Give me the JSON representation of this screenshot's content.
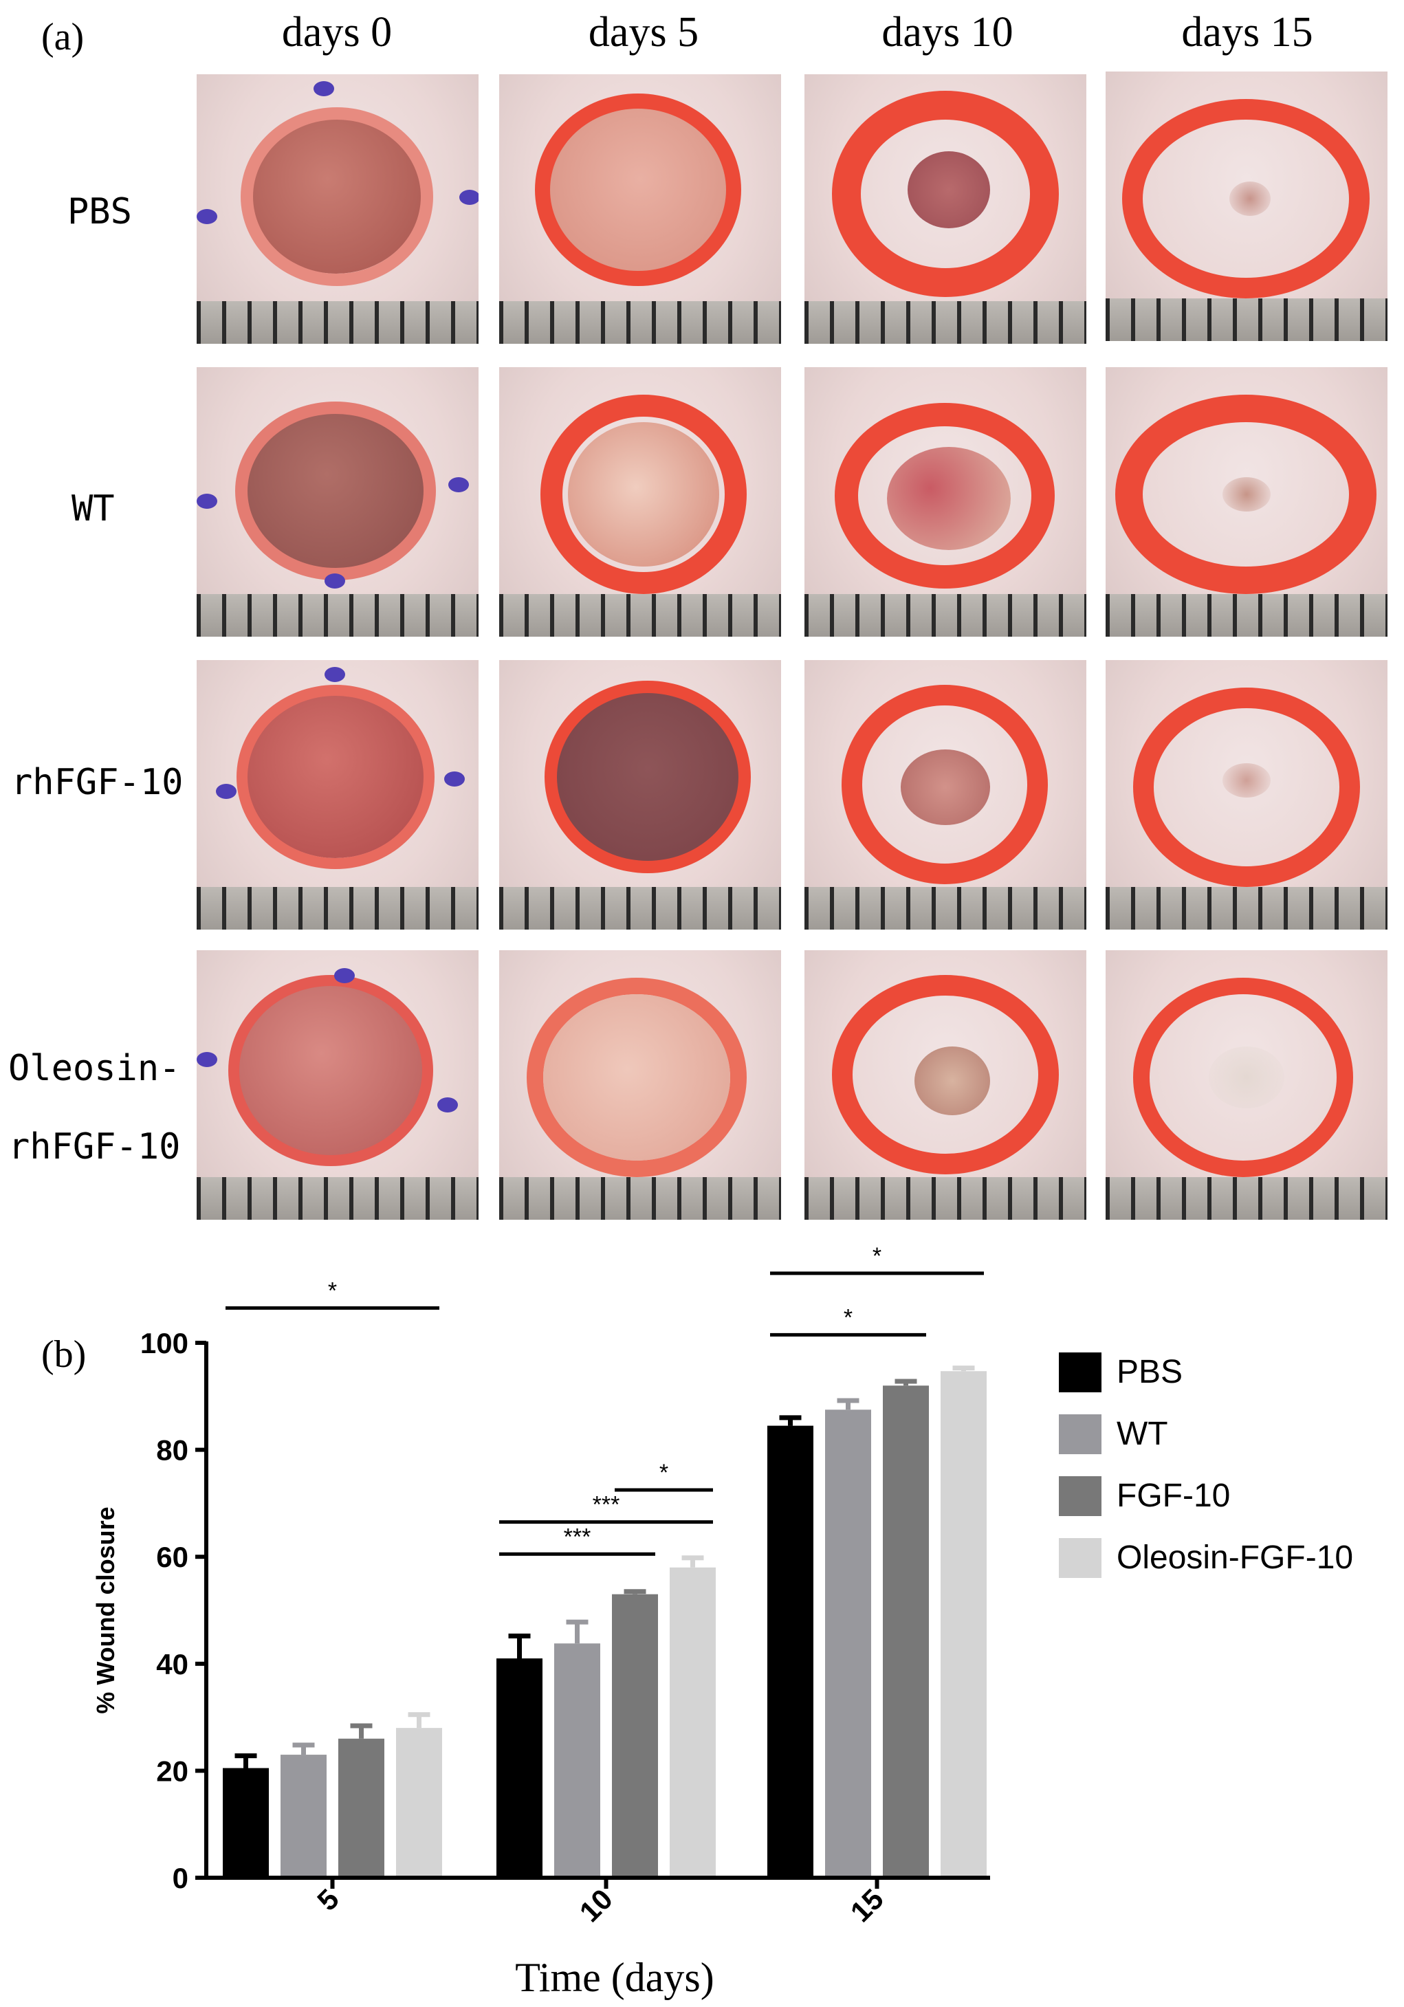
{
  "panel_a": {
    "label": "(a)",
    "columns": [
      "days 0",
      "days 5",
      "days 10",
      "days 15"
    ],
    "rows": [
      {
        "lines": [
          "PBS"
        ]
      },
      {
        "lines": [
          "WT"
        ]
      },
      {
        "lines": [
          "rhFGF-10"
        ]
      },
      {
        "lines": [
          "Oleosin-",
          "rhFGF-10"
        ]
      }
    ]
  },
  "panel_b": {
    "label": "(b)"
  },
  "chart_data": {
    "type": "bar",
    "title": "",
    "xlabel": "Time (days)",
    "ylabel": "% Wound closure",
    "categories": [
      "5",
      "10",
      "15"
    ],
    "ylim": [
      0,
      100
    ],
    "yticks": [
      "0",
      "20",
      "40",
      "60",
      "80",
      "100"
    ],
    "grid": false,
    "legend_position": "right",
    "series": [
      {
        "name": "PBS",
        "color": "#000000",
        "values": [
          20.5,
          41.0,
          84.5
        ],
        "errors": [
          2.3,
          4.2,
          1.5
        ]
      },
      {
        "name": "WT",
        "color": "#98989d",
        "values": [
          23.0,
          43.8,
          87.5
        ],
        "errors": [
          1.8,
          4.0,
          1.7
        ]
      },
      {
        "name": "FGF-10",
        "color": "#787878",
        "values": [
          26.0,
          53.0,
          92.0
        ],
        "errors": [
          2.4,
          0.5,
          0.8
        ]
      },
      {
        "name": "Oleosin-FGF-10",
        "color": "#d4d4d4",
        "values": [
          28.0,
          58.0,
          94.7
        ],
        "errors": [
          2.5,
          1.8,
          0.6
        ]
      }
    ],
    "significance": [
      {
        "category": "5",
        "from": "PBS",
        "to": "Oleosin-FGF-10",
        "label": "*",
        "y": 106.5
      },
      {
        "category": "10",
        "from": "PBS",
        "to": "FGF-10",
        "label": "***",
        "y": 60.5
      },
      {
        "category": "10",
        "from": "PBS",
        "to": "Oleosin-FGF-10",
        "label": "***",
        "y": 66.5
      },
      {
        "category": "10",
        "from": "FGF-10",
        "to": "Oleosin-FGF-10",
        "label": "*",
        "y": 72.5
      },
      {
        "category": "15",
        "from": "PBS",
        "to": "FGF-10",
        "label": "*",
        "y": 101.5
      },
      {
        "category": "15",
        "from": "PBS",
        "to": "Oleosin-FGF-10",
        "label": "*",
        "y": 113.0
      }
    ]
  }
}
